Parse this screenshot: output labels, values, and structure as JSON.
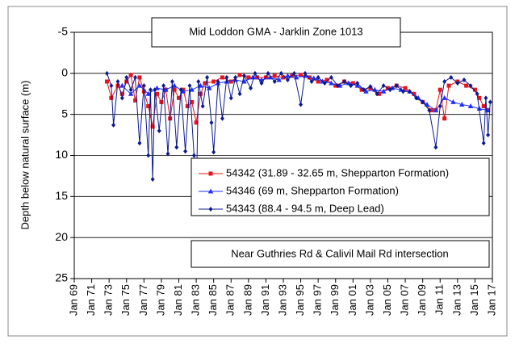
{
  "chart_data": {
    "type": "line",
    "title": "Mid Loddon GMA - Jarklin Zone 1013",
    "y_label": "Depth below natural surface (m)",
    "annotation": "Near Guthries Rd & Calivil Mail Rd intersection",
    "ylim": [
      -5,
      25
    ],
    "y_inverted": true,
    "yticks": [
      -5,
      0,
      5,
      10,
      15,
      20,
      25
    ],
    "grid": true,
    "xlim": [
      "1969-01",
      "2017-01"
    ],
    "xticks": [
      {
        "value": "1969-01",
        "label": "Jan 69"
      },
      {
        "value": "1971-01",
        "label": "Jan 71"
      },
      {
        "value": "1973-01",
        "label": "Jan 73"
      },
      {
        "value": "1975-01",
        "label": "Jan 75"
      },
      {
        "value": "1977-01",
        "label": "Jan 77"
      },
      {
        "value": "1979-01",
        "label": "Jan 79"
      },
      {
        "value": "1981-01",
        "label": "Jan 81"
      },
      {
        "value": "1983-01",
        "label": "Jan 83"
      },
      {
        "value": "1985-01",
        "label": "Jan 85"
      },
      {
        "value": "1987-01",
        "label": "Jan 87"
      },
      {
        "value": "1989-01",
        "label": "Jan 89"
      },
      {
        "value": "1991-01",
        "label": "Jan 91"
      },
      {
        "value": "1993-01",
        "label": "Jan 93"
      },
      {
        "value": "1995-01",
        "label": "Jan 95"
      },
      {
        "value": "1997-01",
        "label": "Jan 97"
      },
      {
        "value": "1999-01",
        "label": "Jan 99"
      },
      {
        "value": "2001-01",
        "label": "Jan 01"
      },
      {
        "value": "2003-01",
        "label": "Jan 03"
      },
      {
        "value": "2005-01",
        "label": "Jan 05"
      },
      {
        "value": "2007-01",
        "label": "Jan 07"
      },
      {
        "value": "2009-01",
        "label": "Jan 09"
      },
      {
        "value": "2011-01",
        "label": "Jan 11"
      },
      {
        "value": "2013-01",
        "label": "Jan 13"
      },
      {
        "value": "2015-01",
        "label": "Jan 15"
      },
      {
        "value": "2017-01",
        "label": "Jan 17"
      }
    ],
    "series": [
      {
        "name": "54342 (31.89 - 32.65 m, Shepparton Formation)",
        "color": "#e8141c",
        "marker": "square",
        "x": [
          "1972-10",
          "1973-04",
          "1974-01",
          "1974-07",
          "1975-01",
          "1975-07",
          "1976-01",
          "1976-07",
          "1977-01",
          "1977-07",
          "1978-01",
          "1978-07",
          "1979-01",
          "1979-07",
          "1980-01",
          "1980-07",
          "1981-01",
          "1981-07",
          "1982-01",
          "1982-07",
          "1983-01",
          "1983-07",
          "1984-01",
          "1985-01",
          "1986-01",
          "1987-01",
          "1988-01",
          "1989-01",
          "1990-01",
          "1991-01",
          "1992-01",
          "1993-01",
          "1994-01",
          "1995-01",
          "1996-01",
          "1997-01",
          "1998-01",
          "1999-01",
          "2000-01",
          "2001-01",
          "2002-01",
          "2003-01",
          "2004-01",
          "2005-01",
          "2006-01",
          "2007-01",
          "2008-01",
          "2009-01",
          "2010-01",
          "2010-07",
          "2011-01",
          "2011-07",
          "2012-01",
          "2013-01",
          "2014-01",
          "2015-01",
          "2015-07",
          "2016-01",
          "2016-07"
        ],
        "values": [
          1,
          3,
          1.5,
          2.5,
          1,
          0.2,
          3.3,
          0.5,
          2.2,
          4,
          6.5,
          2.5,
          3.5,
          2,
          5.5,
          2,
          3,
          2,
          4,
          3.5,
          6,
          2.5,
          1.2,
          1,
          0.5,
          1,
          0.2,
          0.5,
          0.5,
          0.5,
          0.3,
          0.5,
          0.3,
          0.2,
          0.5,
          1,
          0.8,
          1.5,
          1,
          1.2,
          2,
          1.8,
          2.5,
          1.8,
          1.5,
          1.8,
          2.5,
          3.5,
          4.5,
          4.5,
          2,
          5.5,
          1.5,
          1,
          1.5,
          2,
          3,
          4,
          4.5
        ]
      },
      {
        "name": "54346 (69 m, Shepparton Formation)",
        "color": "#1f2fff",
        "marker": "triangle",
        "x": [
          "1974-07",
          "1975-07",
          "1976-07",
          "1977-07",
          "1978-07",
          "1979-07",
          "1980-07",
          "1981-07",
          "1982-07",
          "1983-07",
          "1984-07",
          "1985-07",
          "1986-07",
          "1987-07",
          "1988-07",
          "1989-07",
          "1990-07",
          "1991-07",
          "1992-07",
          "1993-07",
          "1994-07",
          "1995-07",
          "1996-07",
          "1997-07",
          "1998-07",
          "1999-07",
          "2000-07",
          "2001-07",
          "2002-07",
          "2003-07",
          "2004-07",
          "2005-07",
          "2006-07",
          "2007-07",
          "2008-07",
          "2009-07",
          "2010-07",
          "2011-07",
          "2012-07",
          "2013-07",
          "2014-07",
          "2015-07",
          "2016-07"
        ],
        "values": [
          1.5,
          2.5,
          1.5,
          2.5,
          1.8,
          2,
          1.5,
          2.2,
          2,
          1.5,
          1.8,
          1.2,
          1,
          0.8,
          1,
          0.5,
          0.8,
          0.5,
          0.8,
          0.3,
          0.5,
          0.3,
          0.6,
          1,
          1.2,
          1.5,
          1.2,
          1.5,
          2.2,
          2,
          2.2,
          1.8,
          2,
          2.2,
          3,
          3.8,
          4.5,
          3,
          3.5,
          3.8,
          4,
          4.3,
          4.5
        ]
      },
      {
        "name": "54343 (88.4 - 94.5 m, Deep Lead)",
        "color": "#0c1a8c",
        "marker": "diamond",
        "x": [
          "1972-10",
          "1973-04",
          "1973-07",
          "1974-01",
          "1974-07",
          "1975-01",
          "1975-07",
          "1976-01",
          "1976-07",
          "1977-01",
          "1977-07",
          "1977-10",
          "1978-01",
          "1978-04",
          "1978-10",
          "1979-04",
          "1979-10",
          "1980-04",
          "1980-10",
          "1981-04",
          "1981-10",
          "1982-04",
          "1982-10",
          "1983-01",
          "1983-04",
          "1983-10",
          "1984-04",
          "1984-10",
          "1985-01",
          "1985-07",
          "1986-01",
          "1986-07",
          "1987-01",
          "1987-07",
          "1988-01",
          "1988-07",
          "1989-04",
          "1989-10",
          "1990-07",
          "1991-04",
          "1992-01",
          "1992-10",
          "1993-07",
          "1994-04",
          "1995-01",
          "1995-07",
          "1996-04",
          "1997-01",
          "1997-10",
          "1998-07",
          "1999-04",
          "2000-01",
          "2000-10",
          "2001-07",
          "2002-04",
          "2003-01",
          "2003-10",
          "2004-07",
          "2005-04",
          "2006-01",
          "2006-10",
          "2007-07",
          "2008-04",
          "2009-01",
          "2009-10",
          "2010-07",
          "2011-01",
          "2011-07",
          "2012-04",
          "2013-01",
          "2013-10",
          "2014-07",
          "2015-04",
          "2016-01",
          "2016-04",
          "2016-07",
          "2016-10"
        ],
        "values": [
          0,
          1.5,
          6.3,
          1,
          3,
          0.5,
          2,
          0.5,
          8.5,
          1.5,
          10,
          2,
          12.9,
          2,
          7,
          1.5,
          9.8,
          1,
          9,
          2,
          9.5,
          1.5,
          10,
          15.7,
          1,
          4,
          0.5,
          6,
          9.6,
          1,
          5.5,
          0.5,
          3,
          0.5,
          2.5,
          0.3,
          1.8,
          0,
          1.2,
          0,
          1,
          0,
          0.8,
          0,
          3.8,
          0,
          1,
          0.5,
          1.2,
          0.5,
          1.5,
          1,
          1.5,
          1.2,
          2,
          1.6,
          2.5,
          1.5,
          2,
          1.5,
          2.2,
          2.2,
          3,
          3.5,
          4.5,
          9,
          4,
          1,
          0.5,
          1.2,
          0.8,
          1.5,
          2.5,
          8.5,
          3,
          7.5,
          3.5
        ]
      }
    ]
  }
}
